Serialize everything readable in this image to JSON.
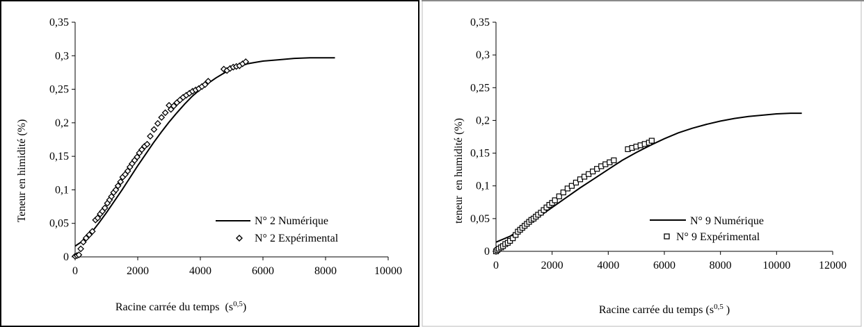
{
  "chart_data": [
    {
      "type": "line",
      "xlabel": "Racine carrée  du temps",
      "xlabel_unit_base": "(s",
      "xlabel_unit_sup": "0,5",
      "xlabel_unit_close": ")",
      "ylabel": "Teneur en himidité (%)",
      "xlim": [
        0,
        10000
      ],
      "ylim": [
        0,
        0.35
      ],
      "x_ticks": [
        0,
        2000,
        4000,
        6000,
        8000,
        10000
      ],
      "x_tick_labels": [
        "0",
        "2000",
        "4000",
        "6000",
        "8000",
        "10000"
      ],
      "y_ticks": [
        0,
        0.05,
        0.1,
        0.15,
        0.2,
        0.25,
        0.3,
        0.35
      ],
      "y_tick_labels": [
        "0",
        "0,05",
        "0,1",
        "0,15",
        "0,2",
        "0,25",
        "0,3",
        "0,35"
      ],
      "grid": false,
      "legend_position": "bottom-right",
      "series": [
        {
          "name": "N° 2 Numérique",
          "style": "line",
          "color": "#000000",
          "x": [
            0,
            250,
            500,
            750,
            1000,
            1250,
            1500,
            1750,
            2000,
            2250,
            2500,
            2750,
            3000,
            3250,
            3500,
            3750,
            4000,
            4250,
            4500,
            4750,
            5000,
            5250,
            5500,
            5750,
            6000,
            6500,
            7000,
            7500,
            8000,
            8300
          ],
          "y": [
            0.016,
            0.024,
            0.035,
            0.05,
            0.066,
            0.083,
            0.1,
            0.118,
            0.136,
            0.153,
            0.17,
            0.186,
            0.201,
            0.215,
            0.228,
            0.24,
            0.25,
            0.259,
            0.267,
            0.274,
            0.28,
            0.284,
            0.288,
            0.29,
            0.292,
            0.294,
            0.296,
            0.297,
            0.297,
            0.297
          ]
        },
        {
          "name": "N° 2 Expérimental",
          "style": "marker",
          "marker": "diamond",
          "color": "#000000",
          "x": [
            0,
            60,
            120,
            180,
            260,
            350,
            450,
            550,
            650,
            720,
            800,
            870,
            950,
            1030,
            1100,
            1160,
            1230,
            1300,
            1370,
            1450,
            1520,
            1600,
            1680,
            1750,
            1820,
            1900,
            1980,
            2050,
            2130,
            2220,
            2300,
            2400,
            2520,
            2640,
            2760,
            2880,
            3000,
            3060,
            3150,
            3250,
            3350,
            3450,
            3550,
            3650,
            3750,
            3850,
            3950,
            4050,
            4150,
            4250,
            4750,
            4850,
            4950,
            5050,
            5150,
            5250,
            5350,
            5450
          ],
          "y": [
            0.001,
            0.002,
            0.003,
            0.012,
            0.022,
            0.028,
            0.033,
            0.038,
            0.055,
            0.058,
            0.064,
            0.068,
            0.073,
            0.08,
            0.085,
            0.09,
            0.096,
            0.1,
            0.106,
            0.112,
            0.119,
            0.123,
            0.128,
            0.134,
            0.139,
            0.144,
            0.149,
            0.155,
            0.16,
            0.165,
            0.168,
            0.18,
            0.19,
            0.199,
            0.208,
            0.215,
            0.226,
            0.22,
            0.225,
            0.23,
            0.234,
            0.238,
            0.241,
            0.244,
            0.247,
            0.249,
            0.251,
            0.254,
            0.257,
            0.262,
            0.28,
            0.278,
            0.281,
            0.283,
            0.284,
            0.285,
            0.288,
            0.291
          ]
        }
      ]
    },
    {
      "type": "line",
      "xlabel": "Racine carrée du temps",
      "xlabel_unit_base": "(s",
      "xlabel_unit_sup": "0,5",
      "xlabel_unit_close": " )",
      "ylabel": "teneur  en humidité (%)",
      "xlim": [
        0,
        12000
      ],
      "ylim": [
        0,
        0.35
      ],
      "x_ticks": [
        0,
        2000,
        4000,
        6000,
        8000,
        10000,
        12000
      ],
      "x_tick_labels": [
        "0",
        "2000",
        "4000",
        "6000",
        "8000",
        "10000",
        "12000"
      ],
      "y_ticks": [
        0,
        0.05,
        0.1,
        0.15,
        0.2,
        0.25,
        0.3,
        0.35
      ],
      "y_tick_labels": [
        "0",
        "0,05",
        "0,1",
        "0,15",
        "0,2",
        "0,25",
        "0,3",
        "0,35"
      ],
      "grid": false,
      "legend_position": "bottom-right",
      "series": [
        {
          "name": "N° 9 Numérique",
          "style": "line",
          "color": "#000000",
          "x": [
            0,
            500,
            1000,
            1500,
            2000,
            2500,
            3000,
            3500,
            4000,
            4500,
            5000,
            5500,
            6000,
            6500,
            7000,
            7500,
            8000,
            8500,
            9000,
            9500,
            10000,
            10500,
            10900
          ],
          "y": [
            0.014,
            0.023,
            0.037,
            0.052,
            0.067,
            0.082,
            0.097,
            0.111,
            0.125,
            0.139,
            0.151,
            0.162,
            0.172,
            0.181,
            0.188,
            0.194,
            0.199,
            0.203,
            0.206,
            0.208,
            0.21,
            0.211,
            0.211
          ]
        },
        {
          "name": "N° 9 Expérimental",
          "style": "marker",
          "marker": "square",
          "color": "#000000",
          "x": [
            0,
            50,
            100,
            180,
            250,
            330,
            420,
            500,
            600,
            700,
            780,
            860,
            940,
            1020,
            1100,
            1180,
            1260,
            1340,
            1420,
            1500,
            1600,
            1700,
            1800,
            1900,
            2000,
            2100,
            2250,
            2400,
            2550,
            2700,
            2850,
            3000,
            3150,
            3300,
            3450,
            3600,
            3750,
            3900,
            4050,
            4200,
            4700,
            4850,
            5000,
            5150,
            5300,
            5450,
            5550
          ],
          "y": [
            0,
            0.002,
            0.004,
            0.006,
            0.008,
            0.011,
            0.013,
            0.016,
            0.02,
            0.025,
            0.03,
            0.033,
            0.036,
            0.039,
            0.042,
            0.045,
            0.048,
            0.05,
            0.053,
            0.056,
            0.059,
            0.063,
            0.067,
            0.071,
            0.074,
            0.078,
            0.084,
            0.09,
            0.096,
            0.1,
            0.105,
            0.11,
            0.114,
            0.118,
            0.122,
            0.126,
            0.13,
            0.133,
            0.136,
            0.139,
            0.156,
            0.158,
            0.16,
            0.162,
            0.164,
            0.166,
            0.169
          ]
        }
      ]
    }
  ]
}
